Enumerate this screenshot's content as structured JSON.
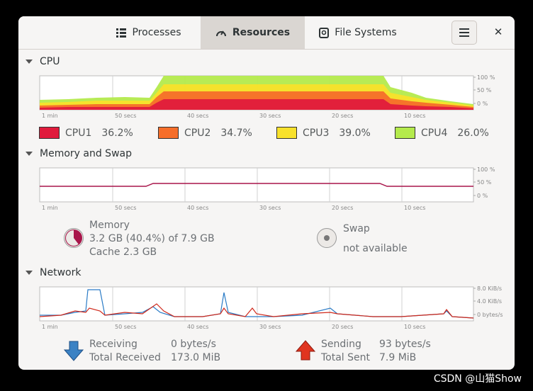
{
  "tabs": [
    {
      "label": "Processes",
      "icon": "list-icon"
    },
    {
      "label": "Resources",
      "icon": "speedometer-icon",
      "active": true
    },
    {
      "label": "File Systems",
      "icon": "disk-icon"
    }
  ],
  "sections": {
    "cpu": "CPU",
    "memory": "Memory and Swap",
    "network": "Network"
  },
  "time_axis": [
    "1 min",
    "50 secs",
    "40 secs",
    "30 secs",
    "20 secs",
    "10 secs"
  ],
  "percent_axis": [
    "100 %",
    "50 %",
    "0 %"
  ],
  "network_axis": [
    "8.0 KiB/s",
    "4.0 KiB/s",
    "0 bytes/s"
  ],
  "cpu_legend": [
    {
      "label": "CPU1",
      "value": "36.2%",
      "color": "#e01b3c"
    },
    {
      "label": "CPU2",
      "value": "34.7%",
      "color": "#f66e2a"
    },
    {
      "label": "CPU3",
      "value": "39.0%",
      "color": "#f8e12b"
    },
    {
      "label": "CPU4",
      "value": "26.0%",
      "color": "#b4ea4c"
    }
  ],
  "memory": {
    "title": "Memory",
    "usage": "3.2 GB (40.4%) of 7.9 GB",
    "cache": "Cache 2.3 GB",
    "color": "#a8154a"
  },
  "swap": {
    "title": "Swap",
    "status": "not available"
  },
  "network": {
    "receiving_label": "Receiving",
    "receiving_value": "0 bytes/s",
    "total_received_label": "Total Received",
    "total_received_value": "173.0 MiB",
    "sending_label": "Sending",
    "sending_value": "93 bytes/s",
    "total_sent_label": "Total Sent",
    "total_sent_value": "7.9 MiB",
    "receive_color": "#2a7bc6",
    "send_color": "#d0291b"
  },
  "watermark": "CSDN @山猫Show",
  "colors": {
    "background": "#f6f5f4",
    "active_tab": "#dad6d2",
    "grid": "#cfcfcf"
  }
}
